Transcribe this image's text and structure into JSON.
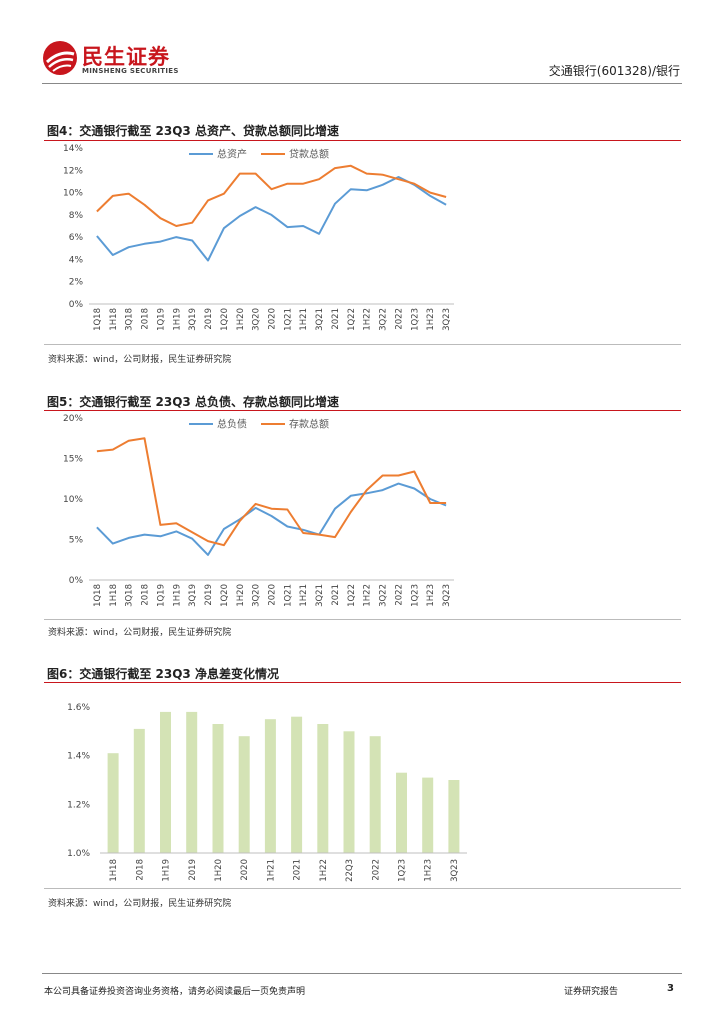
{
  "header": {
    "brand_cn": "民生证券",
    "brand_en": "MINSHENG SECURITIES",
    "report_tag": "交通银行(601328)/银行"
  },
  "figures": [
    {
      "title": "图4：交通银行截至 23Q3 总资产、贷款总额同比增速",
      "source": "资料来源：wind，公司财报，民生证券研究院"
    },
    {
      "title": "图5：交通银行截至 23Q3 总负债、存款总额同比增速",
      "source": "资料来源：wind，公司财报，民生证券研究院"
    },
    {
      "title": "图6：交通银行截至 23Q3 净息差变化情况",
      "source": "资料来源：wind，公司财报，民生证券研究院"
    }
  ],
  "chart_data": [
    {
      "type": "line",
      "y_ticks": [
        "0%",
        "2%",
        "4%",
        "6%",
        "8%",
        "10%",
        "12%",
        "14%"
      ],
      "ylim": [
        0,
        14
      ],
      "y_unit": "%",
      "grid": false,
      "legend_position": "top",
      "categories": [
        "1Q18",
        "1H18",
        "3Q18",
        "2018",
        "1Q19",
        "1H19",
        "3Q19",
        "2019",
        "1Q20",
        "1H20",
        "3Q20",
        "2020",
        "1Q21",
        "1H21",
        "3Q21",
        "2021",
        "1Q22",
        "1H22",
        "3Q22",
        "2022",
        "1Q23",
        "1H23",
        "3Q23"
      ],
      "series": [
        {
          "name": "总资产",
          "color": "#5b9bd5",
          "values": [
            6.1,
            4.4,
            5.1,
            5.4,
            5.6,
            6.0,
            5.7,
            3.9,
            6.8,
            7.9,
            8.7,
            8.0,
            6.9,
            7.0,
            6.3,
            9.0,
            10.3,
            10.2,
            10.7,
            11.4,
            10.7,
            9.7,
            8.9
          ]
        },
        {
          "name": "贷款总额",
          "color": "#ed7d31",
          "values": [
            8.3,
            9.7,
            9.9,
            8.9,
            7.7,
            7.0,
            7.3,
            9.3,
            9.9,
            11.7,
            11.7,
            10.3,
            10.8,
            10.8,
            11.2,
            12.2,
            12.4,
            11.7,
            11.6,
            11.2,
            10.8,
            10.0,
            9.6
          ]
        }
      ]
    },
    {
      "type": "line",
      "y_ticks": [
        "0%",
        "5%",
        "10%",
        "15%",
        "20%"
      ],
      "ylim": [
        0,
        20
      ],
      "y_unit": "%",
      "grid": false,
      "legend_position": "top",
      "categories": [
        "1Q18",
        "1H18",
        "3Q18",
        "2018",
        "1Q19",
        "1H19",
        "3Q19",
        "2019",
        "1Q20",
        "1H20",
        "3Q20",
        "2020",
        "1Q21",
        "1H21",
        "3Q21",
        "2021",
        "1Q22",
        "1H22",
        "3Q22",
        "2022",
        "1Q23",
        "1H23",
        "3Q23"
      ],
      "series": [
        {
          "name": "总负债",
          "color": "#5b9bd5",
          "values": [
            6.5,
            4.5,
            5.2,
            5.6,
            5.4,
            6.0,
            5.1,
            3.1,
            6.3,
            7.5,
            8.9,
            7.9,
            6.6,
            6.2,
            5.6,
            8.8,
            10.4,
            10.7,
            11.1,
            11.9,
            11.3,
            10.0,
            9.2
          ]
        },
        {
          "name": "存款总额",
          "color": "#ed7d31",
          "values": [
            15.9,
            16.1,
            17.2,
            17.5,
            6.8,
            7.0,
            5.9,
            4.8,
            4.3,
            7.3,
            9.4,
            8.8,
            8.7,
            5.8,
            5.6,
            5.3,
            8.4,
            11.1,
            12.9,
            12.9,
            13.4,
            9.5,
            9.5
          ]
        }
      ]
    },
    {
      "type": "bar",
      "y_ticks": [
        "1.0%",
        "1.2%",
        "1.4%",
        "1.6%"
      ],
      "ylim": [
        1.0,
        1.6
      ],
      "y_unit": "%",
      "grid": false,
      "color": "#d4e3b5",
      "categories": [
        "1H18",
        "2018",
        "1H19",
        "2019",
        "1H20",
        "2020",
        "1H21",
        "2021",
        "1H22",
        "22Q3",
        "2022",
        "1Q23",
        "1H23",
        "3Q23"
      ],
      "values": [
        1.41,
        1.51,
        1.58,
        1.58,
        1.53,
        1.48,
        1.55,
        1.56,
        1.53,
        1.5,
        1.48,
        1.33,
        1.31,
        1.3
      ]
    }
  ],
  "footer": {
    "disclaimer": "本公司具备证券投资咨询业务资格，请务必阅读最后一页免责声明",
    "doc_type": "证券研究报告",
    "page_number": "3"
  }
}
